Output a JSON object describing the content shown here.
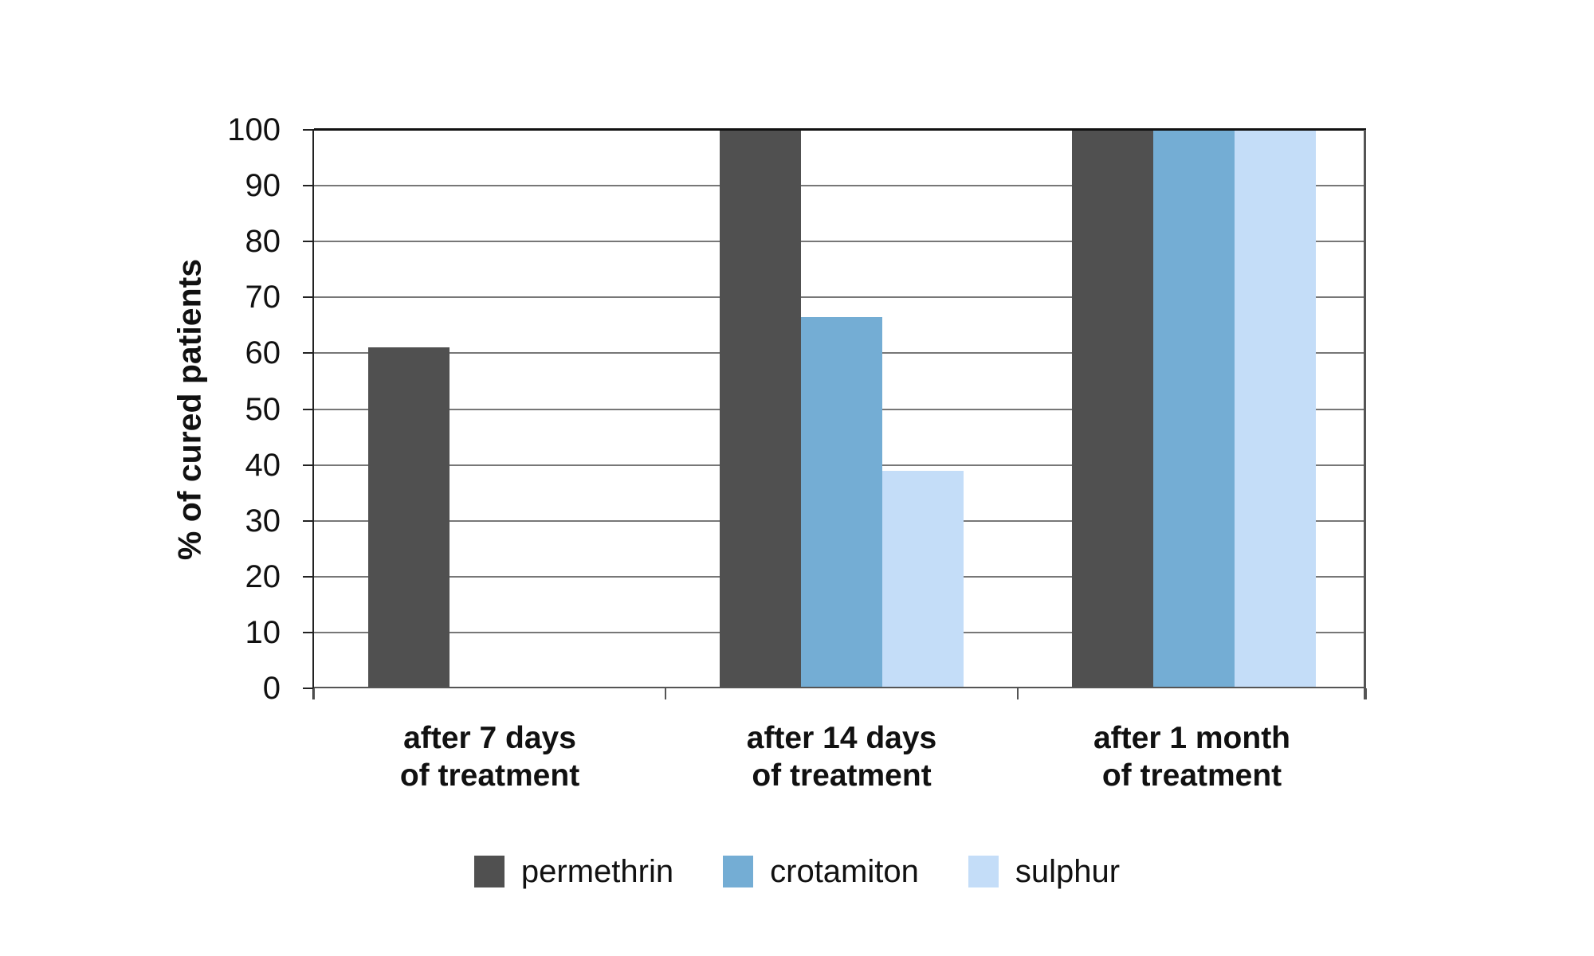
{
  "chart_data": {
    "type": "bar",
    "title": "",
    "xlabel": "",
    "ylabel": "% of cured patients",
    "ylim": [
      0,
      100
    ],
    "ytick_step": 10,
    "yticks": [
      0,
      10,
      20,
      30,
      40,
      50,
      60,
      70,
      80,
      90,
      100
    ],
    "grid": true,
    "legend_position": "bottom",
    "background_color": "#ffffff",
    "gridline_color": "#777777",
    "categories": [
      "after 7 days\nof treatment",
      "after 14 days\nof treatment",
      "after 1 month\nof treatment"
    ],
    "series": [
      {
        "name": "permethrin",
        "color": "#505050",
        "values": [
          61,
          100,
          100
        ]
      },
      {
        "name": "crotamiton",
        "color": "#74add4",
        "values": [
          0,
          66.5,
          100
        ]
      },
      {
        "name": "sulphur",
        "color": "#c4ddf8",
        "values": [
          0,
          39,
          100
        ]
      }
    ]
  }
}
